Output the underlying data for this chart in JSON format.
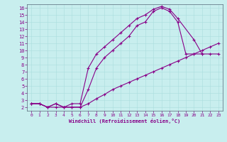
{
  "xlabel": "Windchill (Refroidissement éolien,°C)",
  "xlim": [
    -0.5,
    23.5
  ],
  "ylim": [
    1.5,
    16.5
  ],
  "xticks": [
    0,
    1,
    2,
    3,
    4,
    5,
    6,
    7,
    8,
    9,
    10,
    11,
    12,
    13,
    14,
    15,
    16,
    17,
    18,
    19,
    20,
    21,
    22,
    23
  ],
  "yticks": [
    2,
    3,
    4,
    5,
    6,
    7,
    8,
    9,
    10,
    11,
    12,
    13,
    14,
    15,
    16
  ],
  "bg_color": "#c8eeee",
  "line_color": "#880088",
  "line1_x": [
    0,
    1,
    2,
    3,
    4,
    5,
    6,
    7,
    8,
    9,
    10,
    11,
    12,
    13,
    14,
    15,
    16,
    17,
    18,
    19,
    20,
    21
  ],
  "line1_y": [
    2.5,
    2.5,
    2.0,
    2.5,
    2.0,
    2.0,
    2.0,
    4.5,
    7.5,
    9.0,
    10.0,
    11.0,
    12.0,
    13.5,
    14.0,
    15.5,
    16.0,
    15.5,
    14.0,
    9.5,
    9.5,
    9.5
  ],
  "line2_x": [
    0,
    1,
    2,
    3,
    4,
    5,
    6,
    7,
    8,
    9,
    10,
    11,
    12,
    13,
    14,
    15,
    16,
    17,
    18,
    20,
    21,
    22,
    23
  ],
  "line2_y": [
    2.5,
    2.5,
    2.0,
    2.5,
    2.0,
    2.5,
    2.5,
    7.5,
    9.5,
    10.5,
    11.5,
    12.5,
    13.5,
    14.5,
    15.0,
    15.8,
    16.2,
    15.8,
    14.5,
    11.5,
    9.5,
    9.5,
    9.5
  ],
  "line3_x": [
    0,
    1,
    2,
    3,
    4,
    5,
    6,
    7,
    8,
    9,
    10,
    11,
    12,
    13,
    14,
    15,
    16,
    17,
    18,
    19,
    20,
    21,
    22,
    23
  ],
  "line3_y": [
    2.5,
    2.5,
    2.0,
    2.0,
    2.0,
    2.0,
    2.0,
    2.5,
    3.2,
    3.8,
    4.5,
    5.0,
    5.5,
    6.0,
    6.5,
    7.0,
    7.5,
    8.0,
    8.5,
    9.0,
    9.5,
    10.0,
    10.5,
    11.0
  ]
}
